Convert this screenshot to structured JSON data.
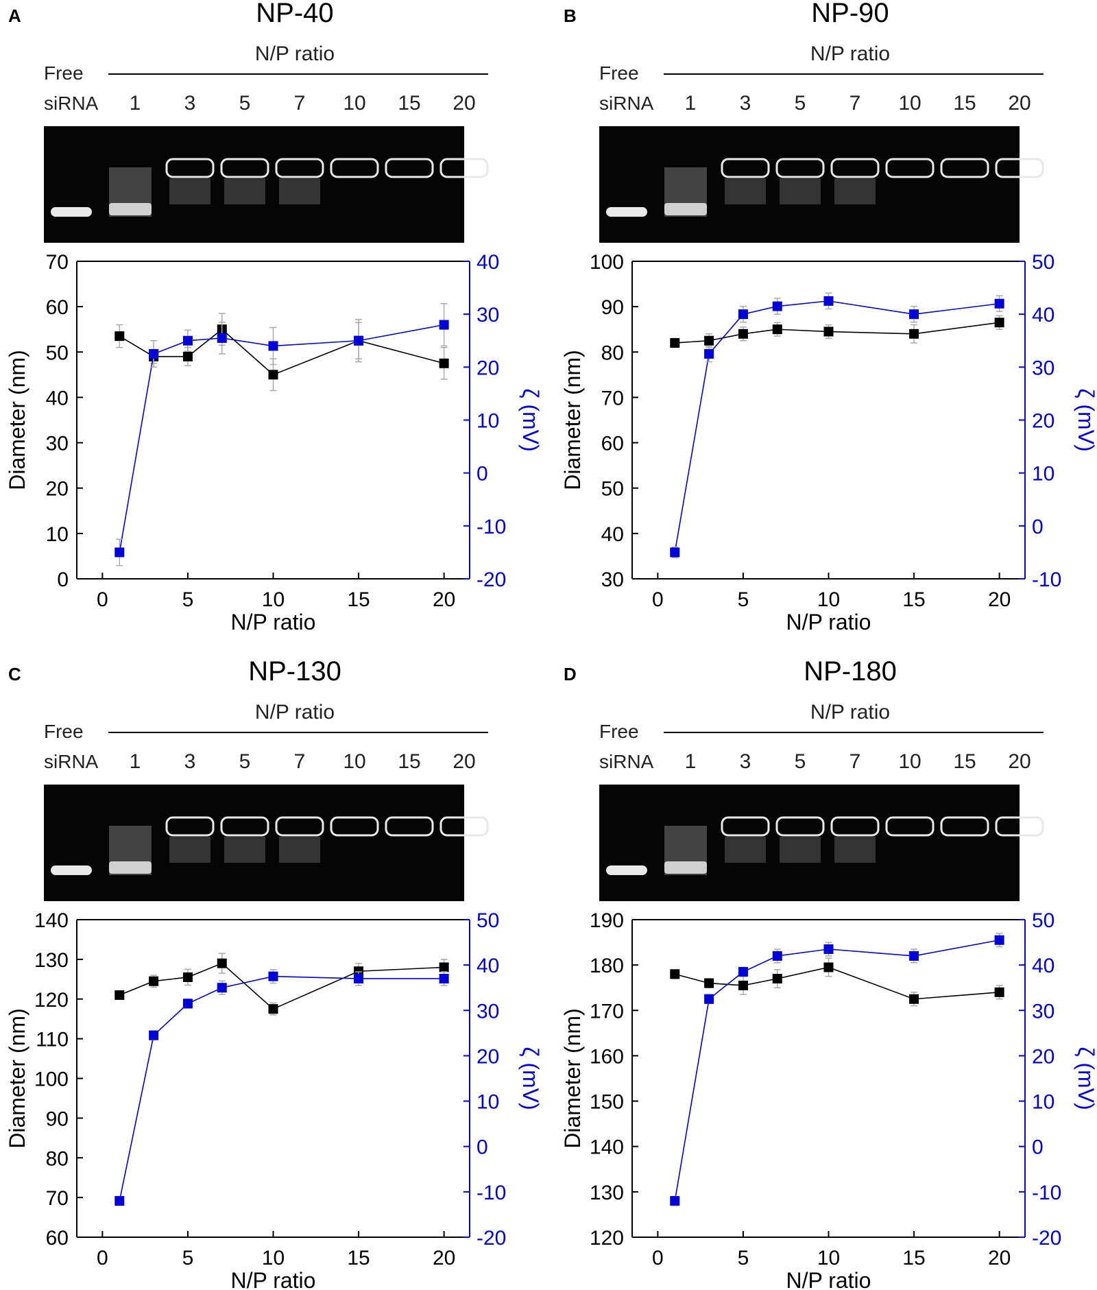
{
  "colors": {
    "diameter": "#000000",
    "zeta": "#0000dd",
    "error_bar": "#aaaaaa",
    "gel_background": "#050505",
    "gel_band": "#e8e8e8"
  },
  "chart_data": [
    {
      "panel_letter": "A",
      "title": "NP-40",
      "type": "line",
      "gel": {
        "header": "N/P ratio",
        "free_label_1": "Free",
        "free_label_2": "siRNA",
        "lanes": [
          "1",
          "3",
          "5",
          "7",
          "10",
          "15",
          "20"
        ]
      },
      "xlabel": "N/P ratio",
      "ylabel_left": "Diameter (nm)",
      "ylabel_right": "ζ (mV)",
      "x_ticks": [
        0,
        5,
        10,
        15,
        20
      ],
      "xlim": [
        -1.5,
        21.5
      ],
      "y_left_ticks": [
        0,
        10,
        20,
        30,
        40,
        50,
        60,
        70
      ],
      "ylim_left": [
        0,
        70
      ],
      "y_right_ticks": [
        -20,
        -10,
        0,
        10,
        20,
        30,
        40
      ],
      "ylim_right": [
        -20,
        40
      ],
      "x": [
        1,
        3,
        5,
        7,
        10,
        15,
        20
      ],
      "series": [
        {
          "name": "Diameter",
          "axis": "left",
          "values": [
            53.5,
            49,
            49,
            55,
            45,
            52.5,
            47.5
          ],
          "errors": [
            2.5,
            1.5,
            2,
            3.5,
            3.5,
            4,
            3.5
          ]
        },
        {
          "name": "Zeta potential",
          "axis": "right",
          "values": [
            -15,
            22.5,
            25,
            25.5,
            24,
            25,
            28
          ],
          "errors": [
            2.5,
            2.5,
            2,
            3,
            3.5,
            4,
            4
          ]
        }
      ]
    },
    {
      "panel_letter": "B",
      "title": "NP-90",
      "type": "line",
      "gel": {
        "header": "N/P ratio",
        "free_label_1": "Free",
        "free_label_2": "siRNA",
        "lanes": [
          "1",
          "3",
          "5",
          "7",
          "10",
          "15",
          "20"
        ]
      },
      "xlabel": "N/P ratio",
      "ylabel_left": "Diameter (nm)",
      "ylabel_right": "ζ (mV)",
      "x_ticks": [
        0,
        5,
        10,
        15,
        20
      ],
      "xlim": [
        -1.5,
        21.5
      ],
      "y_left_ticks": [
        30,
        40,
        50,
        60,
        70,
        80,
        90,
        100
      ],
      "ylim_left": [
        30,
        100
      ],
      "y_right_ticks": [
        -10,
        0,
        10,
        20,
        30,
        40,
        50
      ],
      "ylim_right": [
        -10,
        50
      ],
      "x": [
        1,
        3,
        5,
        7,
        10,
        15,
        20
      ],
      "series": [
        {
          "name": "Diameter",
          "axis": "left",
          "values": [
            82,
            82.5,
            84,
            85,
            84.5,
            84,
            86.5
          ],
          "errors": [
            1,
            1.5,
            1.5,
            1.5,
            1.5,
            2,
            1.5
          ]
        },
        {
          "name": "Zeta potential",
          "axis": "right",
          "values": [
            -5,
            32.5,
            40,
            41.5,
            42.5,
            40,
            42
          ],
          "errors": [
            1,
            1.5,
            1.5,
            1.5,
            1.5,
            1.5,
            1.5
          ]
        }
      ]
    },
    {
      "panel_letter": "C",
      "title": "NP-130",
      "type": "line",
      "gel": {
        "header": "N/P ratio",
        "free_label_1": "Free",
        "free_label_2": "siRNA",
        "lanes": [
          "1",
          "3",
          "5",
          "7",
          "10",
          "15",
          "20"
        ]
      },
      "xlabel": "N/P ratio",
      "ylabel_left": "Diameter (nm)",
      "ylabel_right": "ζ (mV)",
      "x_ticks": [
        0,
        5,
        10,
        15,
        20
      ],
      "xlim": [
        -1.5,
        21.5
      ],
      "y_left_ticks": [
        60,
        70,
        80,
        90,
        100,
        110,
        120,
        130,
        140
      ],
      "ylim_left": [
        60,
        140
      ],
      "y_right_ticks": [
        -20,
        -10,
        0,
        10,
        20,
        30,
        40,
        50
      ],
      "ylim_right": [
        -20,
        50
      ],
      "x": [
        1,
        3,
        5,
        7,
        10,
        15,
        20
      ],
      "series": [
        {
          "name": "Diameter",
          "axis": "left",
          "values": [
            121,
            124.5,
            125.5,
            129,
            117.5,
            127,
            128
          ],
          "errors": [
            1,
            1.5,
            2,
            2.5,
            1.5,
            2,
            2
          ]
        },
        {
          "name": "Zeta potential",
          "axis": "right",
          "values": [
            -12,
            24.5,
            31.5,
            35,
            37.5,
            37,
            37
          ],
          "errors": [
            1,
            1,
            1,
            1.5,
            1.5,
            1.5,
            1.5
          ]
        }
      ]
    },
    {
      "panel_letter": "D",
      "title": "NP-180",
      "type": "line",
      "gel": {
        "header": "N/P ratio",
        "free_label_1": "Free",
        "free_label_2": "siRNA",
        "lanes": [
          "1",
          "3",
          "5",
          "7",
          "10",
          "15",
          "20"
        ]
      },
      "xlabel": "N/P ratio",
      "ylabel_left": "Diameter (nm)",
      "ylabel_right": "ζ (mV)",
      "x_ticks": [
        0,
        5,
        10,
        15,
        20
      ],
      "xlim": [
        -1.5,
        21.5
      ],
      "y_left_ticks": [
        120,
        130,
        140,
        150,
        160,
        170,
        180,
        190
      ],
      "ylim_left": [
        120,
        190
      ],
      "y_right_ticks": [
        -20,
        -10,
        0,
        10,
        20,
        30,
        40,
        50
      ],
      "ylim_right": [
        -20,
        50
      ],
      "x": [
        1,
        3,
        5,
        7,
        10,
        15,
        20
      ],
      "series": [
        {
          "name": "Diameter",
          "axis": "left",
          "values": [
            178,
            176,
            175.5,
            177,
            179.5,
            172.5,
            174
          ],
          "errors": [
            1,
            1,
            2,
            2,
            2,
            1.5,
            1.5
          ]
        },
        {
          "name": "Zeta potential",
          "axis": "right",
          "values": [
            -12,
            32.5,
            38.5,
            42,
            43.5,
            42,
            45.5
          ],
          "errors": [
            1,
            1,
            1,
            1.5,
            1.5,
            1.5,
            1.5
          ]
        }
      ]
    }
  ]
}
